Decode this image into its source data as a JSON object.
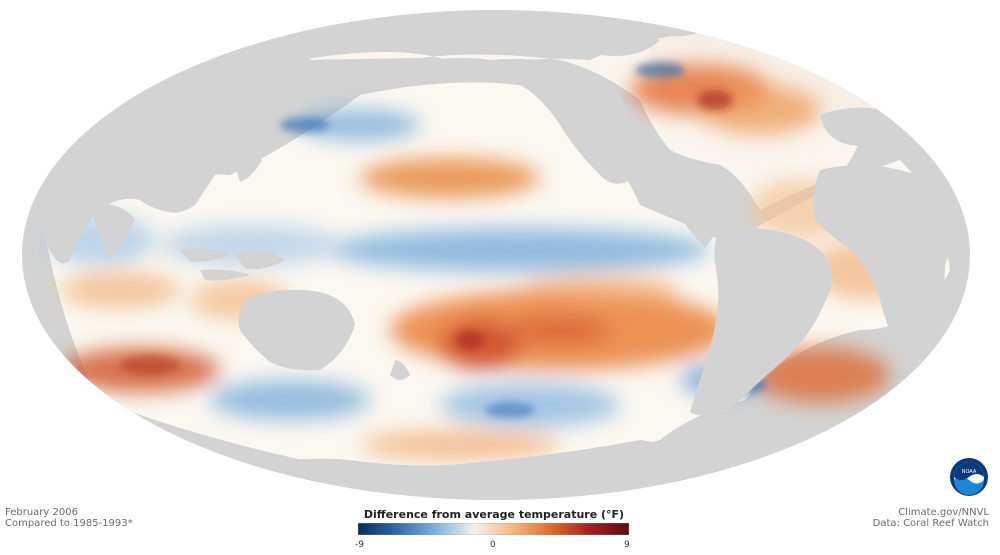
{
  "map": {
    "projection": "mollweide",
    "colors": {
      "land": "#d3d3d3",
      "ocean_neutral": "#fbf8f1",
      "warm": "#ea8340",
      "warm_strong": "#b72c29",
      "cool": "#6aa2d6",
      "cool_strong": "#1a4f96"
    }
  },
  "footer": {
    "date": "February 2006",
    "baseline": "Compared to 1985-1993*",
    "credit": "Climate.gov/NNVL",
    "source": "Data: Coral Reef Watch"
  },
  "legend": {
    "title": "Difference from average temperature (°F)",
    "min_label": "-9",
    "mid_label": "0",
    "max_label": "9",
    "colors": [
      "#0a2b5c",
      "#2f69ad",
      "#7fb2dd",
      "#f4f1ea",
      "#f2b982",
      "#e06a2e",
      "#a11f20",
      "#5a0b14"
    ]
  },
  "logo": {
    "text": "NOAA",
    "icon": "noaa-logo-icon"
  }
}
